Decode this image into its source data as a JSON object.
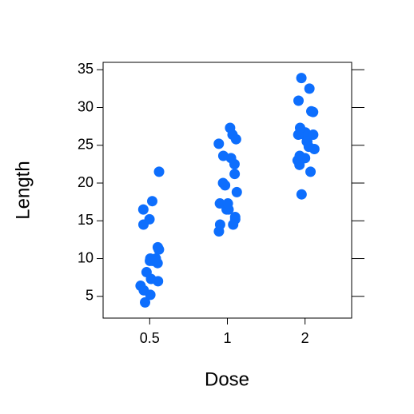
{
  "chart_data": {
    "type": "strip",
    "x_label": "Dose",
    "y_label": "Length",
    "categories": [
      "0.5",
      "1",
      "2"
    ],
    "values": [
      [
        4.2,
        11.5,
        7.3,
        5.8,
        6.4,
        10,
        11.2,
        11.2,
        5.2,
        7,
        15.2,
        21.5,
        17.6,
        9.7,
        14.5,
        10,
        8.2,
        9.4,
        16.5,
        9.7
      ],
      [
        16.5,
        16.5,
        15.2,
        17.3,
        22.5,
        17.3,
        13.6,
        14.5,
        18.8,
        15.5,
        19.7,
        23.3,
        23.6,
        26.4,
        20,
        25.2,
        25.8,
        21.2,
        14.5,
        27.3
      ],
      [
        23.6,
        18.5,
        33.9,
        25.5,
        26.4,
        32.5,
        26.7,
        21.5,
        23.3,
        29.5,
        25.5,
        26.4,
        22.4,
        24.5,
        24.8,
        30.9,
        26.4,
        27.3,
        29.4,
        23
      ]
    ],
    "color": "#0d6efd",
    "ylim": [
      2.12,
      35.98
    ],
    "yticks": [
      5,
      10,
      15,
      20,
      25,
      30,
      35
    ]
  }
}
